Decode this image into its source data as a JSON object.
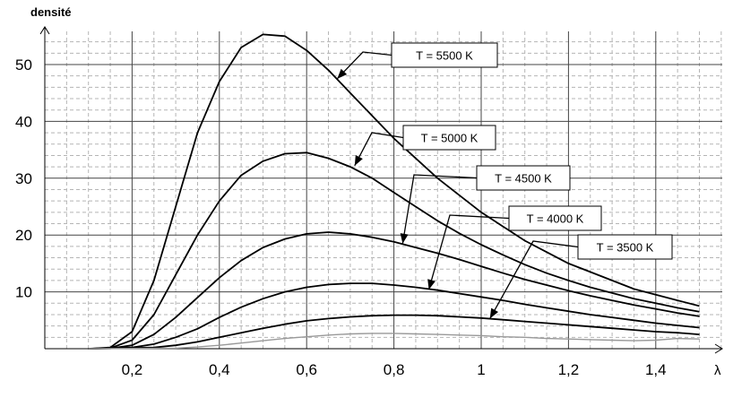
{
  "chart_data": {
    "type": "line",
    "title": "",
    "ylabel": "densité",
    "xlabel": "λ",
    "xlim": [
      0,
      1.5
    ],
    "ylim": [
      0,
      55
    ],
    "grid": true,
    "x_ticks": [
      "0,2",
      "0,4",
      "0,6",
      "0,8",
      "1",
      "1,2",
      "1,4"
    ],
    "y_ticks": [
      "10",
      "20",
      "30",
      "40",
      "50"
    ],
    "series": [
      {
        "name": "T = 5500 K",
        "color": "#000000",
        "points": [
          [
            0.1,
            0
          ],
          [
            0.15,
            0.2
          ],
          [
            0.2,
            3
          ],
          [
            0.25,
            12
          ],
          [
            0.3,
            25
          ],
          [
            0.35,
            38
          ],
          [
            0.4,
            47
          ],
          [
            0.45,
            53
          ],
          [
            0.5,
            55.3
          ],
          [
            0.55,
            55
          ],
          [
            0.6,
            52.5
          ],
          [
            0.65,
            49
          ],
          [
            0.7,
            45
          ],
          [
            0.75,
            41
          ],
          [
            0.8,
            37
          ],
          [
            0.85,
            33.5
          ],
          [
            0.9,
            30
          ],
          [
            0.95,
            27
          ],
          [
            1.0,
            24
          ],
          [
            1.05,
            21.5
          ],
          [
            1.1,
            19
          ],
          [
            1.15,
            17
          ],
          [
            1.2,
            15
          ],
          [
            1.25,
            13.5
          ],
          [
            1.3,
            12
          ],
          [
            1.35,
            10.5
          ],
          [
            1.4,
            9.5
          ],
          [
            1.45,
            8.5
          ],
          [
            1.5,
            7.5
          ]
        ]
      },
      {
        "name": "T = 5000 K",
        "color": "#000000",
        "points": [
          [
            0.1,
            0
          ],
          [
            0.15,
            0.1
          ],
          [
            0.2,
            1.5
          ],
          [
            0.25,
            6
          ],
          [
            0.3,
            13
          ],
          [
            0.35,
            20
          ],
          [
            0.4,
            26
          ],
          [
            0.45,
            30.5
          ],
          [
            0.5,
            33
          ],
          [
            0.55,
            34.3
          ],
          [
            0.6,
            34.5
          ],
          [
            0.65,
            33.5
          ],
          [
            0.7,
            32
          ],
          [
            0.75,
            30
          ],
          [
            0.8,
            27.5
          ],
          [
            0.85,
            25
          ],
          [
            0.9,
            22.5
          ],
          [
            0.95,
            20.3
          ],
          [
            1.0,
            18.3
          ],
          [
            1.05,
            16.5
          ],
          [
            1.1,
            14.8
          ],
          [
            1.15,
            13.3
          ],
          [
            1.2,
            12
          ],
          [
            1.25,
            10.8
          ],
          [
            1.3,
            9.8
          ],
          [
            1.35,
            8.8
          ],
          [
            1.4,
            8
          ],
          [
            1.45,
            7.2
          ],
          [
            1.5,
            6.5
          ]
        ]
      },
      {
        "name": "T = 4500 K",
        "color": "#000000",
        "points": [
          [
            0.1,
            0
          ],
          [
            0.15,
            0.05
          ],
          [
            0.2,
            0.6
          ],
          [
            0.25,
            2.5
          ],
          [
            0.3,
            5.5
          ],
          [
            0.35,
            9
          ],
          [
            0.4,
            12.5
          ],
          [
            0.45,
            15.5
          ],
          [
            0.5,
            17.8
          ],
          [
            0.55,
            19.3
          ],
          [
            0.6,
            20.2
          ],
          [
            0.65,
            20.5
          ],
          [
            0.7,
            20.2
          ],
          [
            0.75,
            19.6
          ],
          [
            0.8,
            18.8
          ],
          [
            0.85,
            17.8
          ],
          [
            0.9,
            16.8
          ],
          [
            0.95,
            15.7
          ],
          [
            1.0,
            14.5
          ],
          [
            1.05,
            13.3
          ],
          [
            1.1,
            12.2
          ],
          [
            1.15,
            11.2
          ],
          [
            1.2,
            10.2
          ],
          [
            1.25,
            9.3
          ],
          [
            1.3,
            8.5
          ],
          [
            1.35,
            7.7
          ],
          [
            1.4,
            7
          ],
          [
            1.45,
            6.3
          ],
          [
            1.5,
            5.7
          ]
        ]
      },
      {
        "name": "T = 4000 K",
        "color": "#000000",
        "points": [
          [
            0.1,
            0
          ],
          [
            0.2,
            0.2
          ],
          [
            0.25,
            0.8
          ],
          [
            0.3,
            2
          ],
          [
            0.35,
            3.5
          ],
          [
            0.4,
            5.5
          ],
          [
            0.45,
            7.3
          ],
          [
            0.5,
            8.8
          ],
          [
            0.55,
            10
          ],
          [
            0.6,
            10.8
          ],
          [
            0.65,
            11.3
          ],
          [
            0.7,
            11.5
          ],
          [
            0.75,
            11.5
          ],
          [
            0.8,
            11.2
          ],
          [
            0.85,
            10.8
          ],
          [
            0.9,
            10.3
          ],
          [
            0.95,
            9.7
          ],
          [
            1.0,
            9.1
          ],
          [
            1.05,
            8.5
          ],
          [
            1.1,
            7.8
          ],
          [
            1.15,
            7.2
          ],
          [
            1.2,
            6.6
          ],
          [
            1.25,
            6
          ],
          [
            1.3,
            5.5
          ],
          [
            1.35,
            5
          ],
          [
            1.4,
            4.5
          ],
          [
            1.45,
            4.1
          ],
          [
            1.5,
            3.7
          ]
        ]
      },
      {
        "name": "T = 3500 K",
        "color": "#000000",
        "points": [
          [
            0.1,
            0
          ],
          [
            0.25,
            0.2
          ],
          [
            0.3,
            0.6
          ],
          [
            0.35,
            1.2
          ],
          [
            0.4,
            2
          ],
          [
            0.45,
            2.8
          ],
          [
            0.5,
            3.6
          ],
          [
            0.55,
            4.3
          ],
          [
            0.6,
            4.9
          ],
          [
            0.65,
            5.3
          ],
          [
            0.7,
            5.6
          ],
          [
            0.75,
            5.8
          ],
          [
            0.8,
            5.9
          ],
          [
            0.85,
            5.9
          ],
          [
            0.9,
            5.8
          ],
          [
            0.95,
            5.6
          ],
          [
            1.0,
            5.4
          ],
          [
            1.05,
            5.1
          ],
          [
            1.1,
            4.8
          ],
          [
            1.15,
            4.5
          ],
          [
            1.2,
            4.2
          ],
          [
            1.25,
            3.9
          ],
          [
            1.3,
            3.6
          ],
          [
            1.35,
            3.3
          ],
          [
            1.4,
            3
          ],
          [
            1.45,
            2.8
          ],
          [
            1.5,
            2.5
          ]
        ]
      },
      {
        "name": "",
        "color": "#999999",
        "points": [
          [
            0.1,
            0
          ],
          [
            0.3,
            0.1
          ],
          [
            0.35,
            0.3
          ],
          [
            0.4,
            0.6
          ],
          [
            0.45,
            1
          ],
          [
            0.5,
            1.4
          ],
          [
            0.55,
            1.8
          ],
          [
            0.6,
            2.1
          ],
          [
            0.65,
            2.4
          ],
          [
            0.7,
            2.6
          ],
          [
            0.75,
            2.7
          ],
          [
            0.8,
            2.7
          ],
          [
            0.85,
            2.6
          ],
          [
            0.9,
            2.5
          ],
          [
            0.95,
            2.4
          ],
          [
            1.0,
            2.3
          ],
          [
            1.05,
            2.1
          ],
          [
            1.1,
            2
          ],
          [
            1.15,
            1.8
          ],
          [
            1.2,
            1.7
          ],
          [
            1.25,
            1.6
          ],
          [
            1.3,
            1.5
          ],
          [
            1.35,
            1.4
          ],
          [
            1.4,
            1.5
          ],
          [
            1.45,
            1.8
          ],
          [
            1.5,
            1.7
          ]
        ]
      }
    ],
    "annotations": [
      {
        "label": "T = 5500 K",
        "series": 0,
        "point": [
          0.67,
          47.5
        ]
      },
      {
        "label": "T = 5000 K",
        "series": 1,
        "point": [
          0.71,
          32.2
        ]
      },
      {
        "label": "T = 4500 K",
        "series": 2,
        "point": [
          0.82,
          18.5
        ]
      },
      {
        "label": "T = 4000 K",
        "series": 3,
        "point": [
          0.88,
          10.4
        ]
      },
      {
        "label": "T = 3500 K",
        "series": 4,
        "point": [
          1.02,
          5.3
        ]
      }
    ]
  }
}
